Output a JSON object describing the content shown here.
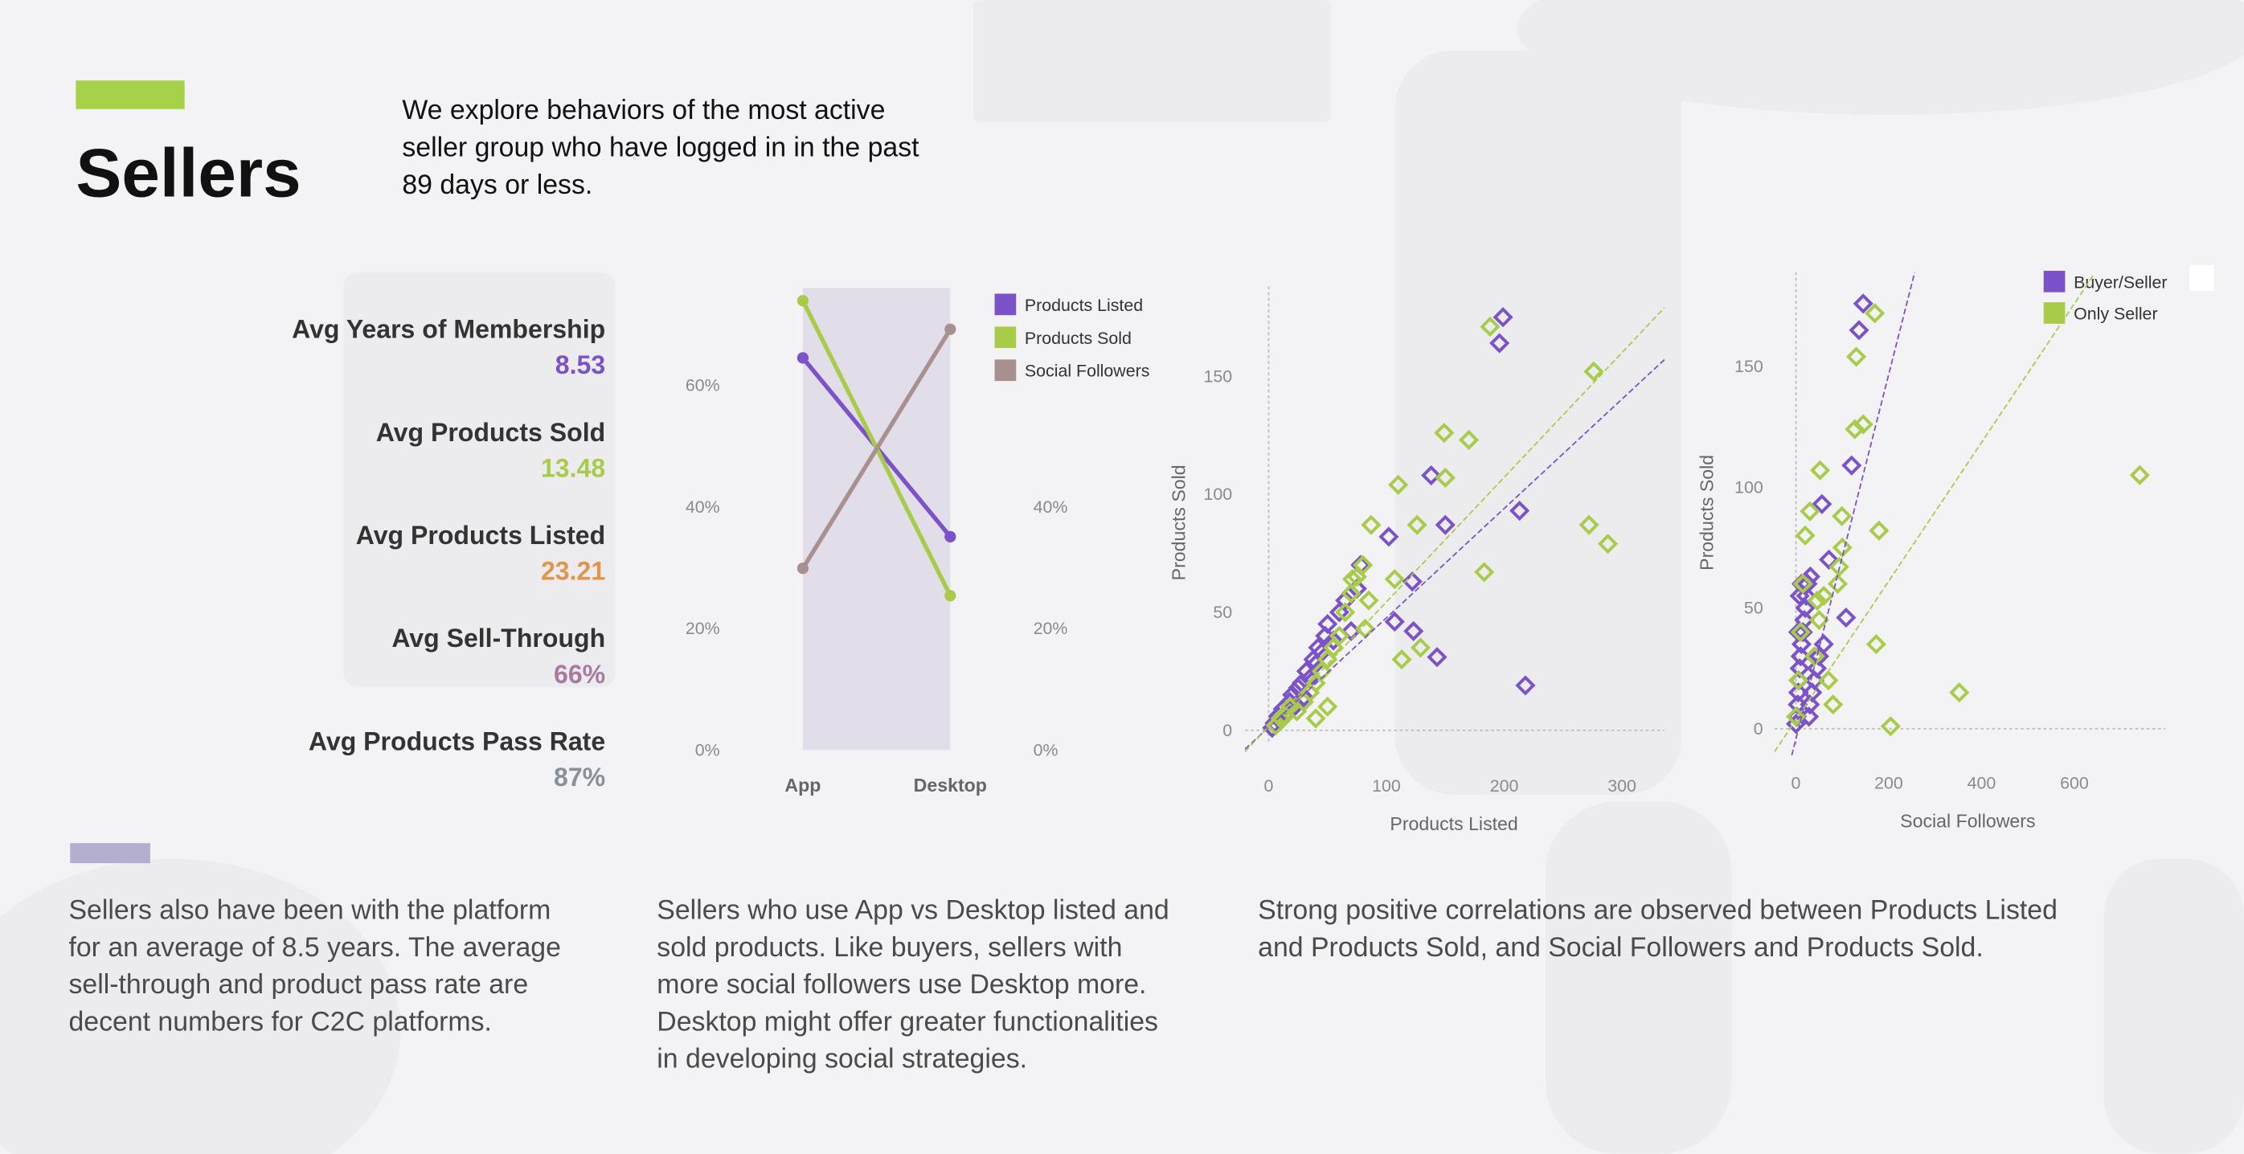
{
  "header": {
    "title": "Sellers",
    "intro": [
      "We explore behaviors of the most active",
      "seller group who have logged in in the past",
      "89 days or less."
    ]
  },
  "kpis": [
    {
      "label": "Avg Years of Membership",
      "value": "8.53",
      "color": "#7b52c9"
    },
    {
      "label": "Avg Products Sold",
      "value": "13.48",
      "color": "#a8cc4a"
    },
    {
      "label": "Avg Products Listed",
      "value": "23.21",
      "color": "#e0954a"
    },
    {
      "label": "Avg Sell-Through",
      "value": "66%",
      "color": "#a87aa0"
    },
    {
      "label": "Avg Products Pass Rate",
      "value": "87%",
      "color": "#8a8f99"
    }
  ],
  "paragraphs": [
    [
      "Sellers also have been with the platform",
      "for an average of 8.5 years. The average",
      "sell-through and product pass rate are",
      "decent numbers for C2C platforms."
    ],
    [
      "Sellers who use App vs Desktop listed and",
      "sold products. Like buyers, sellers with",
      "more social followers use Desktop more.",
      "Desktop might offer greater functionalities",
      "in developing social strategies."
    ],
    [
      "Strong positive correlations are observed between Products Listed",
      "and Products Sold, and Social Followers and Products Sold."
    ]
  ],
  "chart_data": [
    {
      "type": "line",
      "categories": [
        "App",
        "Desktop"
      ],
      "series": [
        {
          "name": "Products Listed",
          "color": "#7b52c9",
          "values": [
            64.5,
            35.1
          ]
        },
        {
          "name": "Products Sold",
          "color": "#a8cc4a",
          "values": [
            73.9,
            25.4
          ]
        },
        {
          "name": "Social Followers",
          "color": "#a89090",
          "values": [
            29.9,
            69.2
          ]
        }
      ],
      "ylim": [
        0,
        76
      ],
      "yticks": [
        {
          "value": 0,
          "label": "0%"
        },
        {
          "value": 20,
          "label": "20%"
        },
        {
          "value": 40,
          "label": "40%"
        },
        {
          "value": 60,
          "label": "60%"
        }
      ],
      "y2lim": [
        0,
        76
      ],
      "y2ticks": [
        {
          "value": 0,
          "label": "0%"
        },
        {
          "value": 20,
          "label": "20%"
        },
        {
          "value": 40,
          "label": "40%"
        }
      ],
      "legend": "right"
    },
    {
      "type": "scatter",
      "xlabel": "Products Listed",
      "ylabel": "Products Sold",
      "xlim": [
        -20,
        336
      ],
      "ylim": [
        -6,
        188
      ],
      "xticks": [
        0,
        100,
        200,
        300
      ],
      "yticks": [
        0,
        50,
        100,
        150
      ],
      "series": [
        {
          "color": "#7b52c9",
          "x": [
            199,
            196,
            138,
            213,
            150,
            102,
            122,
            78,
            107,
            123,
            143,
            218,
            5,
            8,
            10,
            12,
            15,
            18,
            20,
            22,
            25,
            28,
            30,
            32,
            35,
            38,
            40,
            42,
            45,
            48,
            50,
            3,
            55,
            60,
            65,
            70,
            75
          ],
          "values": [
            175,
            164,
            108,
            93,
            87,
            82,
            63,
            70,
            46,
            42,
            31,
            19,
            3,
            6,
            4,
            9,
            7,
            12,
            15,
            10,
            18,
            20,
            14,
            25,
            22,
            30,
            28,
            35,
            33,
            40,
            45,
            1,
            38,
            50,
            55,
            42,
            60
          ],
          "trendline": {
            "x": [
              -20,
              336
            ],
            "values": [
              -8,
              157
            ]
          }
        },
        {
          "color": "#a8cc4a",
          "x": [
            188,
            276,
            150,
            170,
            149,
            110,
            87,
            126,
            272,
            288,
            183,
            71,
            107,
            113,
            129,
            82,
            6,
            10,
            14,
            18,
            24,
            30,
            35,
            40,
            45,
            50,
            55,
            60,
            65,
            70,
            75,
            80,
            85,
            50,
            40
          ],
          "values": [
            171,
            152,
            107,
            123,
            126,
            104,
            87,
            87,
            87,
            79,
            67,
            64,
            64,
            30,
            35,
            43,
            2,
            5,
            6,
            10,
            8,
            12,
            16,
            20,
            25,
            30,
            35,
            40,
            50,
            58,
            65,
            70,
            55,
            10,
            5
          ],
          "trendline": {
            "x": [
              -20,
              336
            ],
            "values": [
              -9,
              179
            ]
          }
        }
      ]
    },
    {
      "type": "scatter",
      "xlabel": "Social Followers",
      "ylabel": "Products Sold",
      "xlim": [
        -46,
        796
      ],
      "ylim": [
        -6.5,
        189
      ],
      "xticks": [
        0,
        200,
        400,
        600
      ],
      "yticks": [
        0,
        50,
        100,
        150
      ],
      "legend": "top-right",
      "series": [
        {
          "name": "Buyer/Seller",
          "color": "#7b52c9",
          "x": [
            145,
            136,
            120,
            56,
            71,
            31,
            108,
            0,
            2,
            4,
            5,
            6,
            8,
            10,
            12,
            15,
            18,
            20,
            22,
            25,
            28,
            30,
            35,
            40,
            45,
            50,
            60,
            5,
            8,
            12
          ],
          "values": [
            176,
            165,
            109,
            93,
            70,
            63,
            46,
            2,
            5,
            10,
            15,
            20,
            25,
            30,
            35,
            40,
            45,
            50,
            55,
            60,
            5,
            10,
            15,
            20,
            25,
            30,
            35,
            40,
            55,
            60
          ],
          "trendline": {
            "x": [
              -9,
              256
            ],
            "values": [
              -11,
              189
            ]
          }
        },
        {
          "name": "Only Seller",
          "color": "#a8cc4a",
          "x": [
            741,
            352,
            204,
            170,
            130,
            145,
            127,
            52,
            179,
            99,
            173,
            93,
            46,
            0,
            5,
            10,
            15,
            20,
            30,
            40,
            50,
            60,
            70,
            80,
            90,
            100
          ],
          "values": [
            105,
            15,
            1,
            172,
            154,
            126,
            124,
            107,
            82,
            88,
            35,
            67,
            53,
            5,
            20,
            40,
            60,
            80,
            90,
            30,
            45,
            55,
            20,
            10,
            60,
            75
          ],
          "trendline": {
            "x": [
              -46,
              642
            ],
            "values": [
              -9.5,
              188
            ]
          }
        }
      ]
    }
  ]
}
